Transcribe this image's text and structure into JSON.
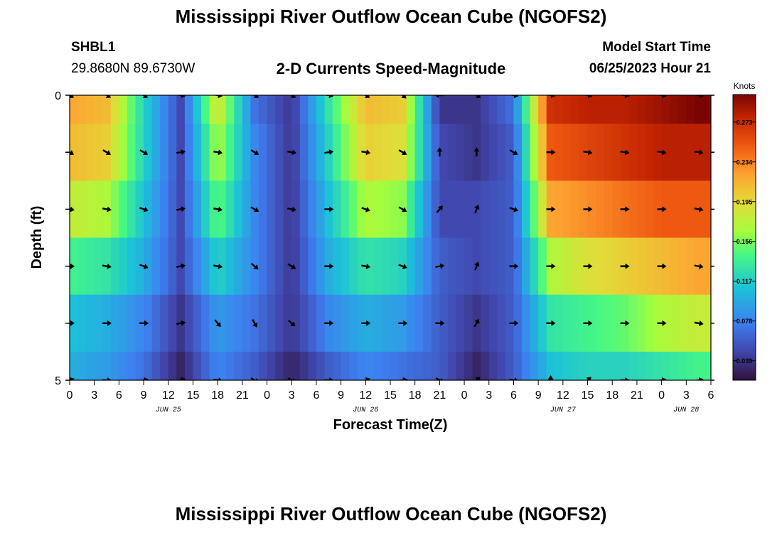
{
  "header": {
    "title": "Mississippi River Outflow Ocean Cube (NGOFS2)",
    "station_name": "SHBL1",
    "coordinates": "29.8680N  89.6730W",
    "subtitle": "2-D Currents Speed-Magnitude",
    "model_start_label": "Model Start Time",
    "model_start_value": "06/25/2023 Hour 21"
  },
  "footer": {
    "title": "Mississippi River Outflow Ocean Cube (NGOFS2)"
  },
  "chart_data": {
    "type": "heatmap",
    "xlabel": "Forecast Time(Z)",
    "ylabel": "Depth (ft)",
    "x_ticks": [
      "0",
      "3",
      "6",
      "9",
      "12",
      "15",
      "18",
      "21",
      "0",
      "3",
      "6",
      "9",
      "12",
      "15",
      "18",
      "21",
      "0",
      "3",
      "6",
      "9",
      "12",
      "15",
      "18",
      "21",
      "0",
      "3",
      "6"
    ],
    "x_range_hours": [
      0,
      78
    ],
    "y_ticks": [
      "0",
      "5"
    ],
    "y_range": [
      0,
      5
    ],
    "depth_levels": [
      0,
      1,
      2,
      3,
      4,
      5
    ],
    "date_labels": [
      {
        "label": "JUN 25",
        "hour": 12
      },
      {
        "label": "JUN 26",
        "hour": 36
      },
      {
        "label": "JUN 27",
        "hour": 60
      },
      {
        "label": "JUN 28",
        "hour": 75
      }
    ],
    "colorbar": {
      "units": "Knots",
      "ticks": [
        "0.273",
        "0.234",
        "0.195",
        "0.156",
        "0.117",
        "0.078",
        "0.039"
      ],
      "tick_values": [
        0.273,
        0.234,
        0.195,
        0.156,
        0.117,
        0.078,
        0.039
      ],
      "min": 0.02,
      "max": 0.3
    },
    "time_hours": [
      0,
      4.5,
      9,
      13.5,
      18,
      22.5,
      27,
      31.5,
      36,
      40.5,
      45,
      49.5,
      54,
      58.5,
      63,
      67.5,
      72,
      76.5
    ],
    "speed_knots": [
      [
        0.22,
        0.21,
        0.12,
        0.05,
        0.19,
        0.07,
        0.04,
        0.13,
        0.21,
        0.2,
        0.04,
        0.04,
        0.07,
        0.27,
        0.28,
        0.28,
        0.29,
        0.3
      ],
      [
        0.21,
        0.2,
        0.12,
        0.05,
        0.17,
        0.08,
        0.04,
        0.12,
        0.2,
        0.19,
        0.05,
        0.04,
        0.06,
        0.25,
        0.26,
        0.27,
        0.28,
        0.28
      ],
      [
        0.18,
        0.17,
        0.11,
        0.05,
        0.15,
        0.08,
        0.04,
        0.11,
        0.17,
        0.16,
        0.05,
        0.05,
        0.06,
        0.22,
        0.23,
        0.24,
        0.25,
        0.25
      ],
      [
        0.14,
        0.13,
        0.1,
        0.05,
        0.12,
        0.08,
        0.04,
        0.1,
        0.13,
        0.12,
        0.06,
        0.05,
        0.06,
        0.17,
        0.19,
        0.2,
        0.21,
        0.22
      ],
      [
        0.11,
        0.1,
        0.08,
        0.04,
        0.09,
        0.07,
        0.04,
        0.08,
        0.1,
        0.09,
        0.06,
        0.04,
        0.06,
        0.13,
        0.14,
        0.15,
        0.17,
        0.18
      ],
      [
        0.1,
        0.09,
        0.07,
        0.03,
        0.08,
        0.06,
        0.03,
        0.06,
        0.08,
        0.07,
        0.06,
        0.03,
        0.06,
        0.11,
        0.12,
        0.12,
        0.13,
        0.14
      ]
    ],
    "direction_deg": [
      [
        120,
        120,
        120,
        100,
        100,
        120,
        120,
        100,
        120,
        130,
        270,
        120,
        100,
        100,
        100,
        100,
        100,
        100
      ],
      [
        120,
        120,
        120,
        80,
        100,
        120,
        100,
        80,
        100,
        120,
        0,
        0,
        120,
        90,
        100,
        100,
        100,
        100
      ],
      [
        100,
        100,
        110,
        80,
        100,
        120,
        100,
        90,
        110,
        120,
        40,
        20,
        110,
        90,
        90,
        90,
        90,
        100
      ],
      [
        90,
        100,
        110,
        80,
        100,
        130,
        120,
        90,
        100,
        110,
        80,
        20,
        90,
        90,
        90,
        90,
        90,
        100
      ],
      [
        90,
        90,
        90,
        80,
        140,
        150,
        130,
        90,
        90,
        90,
        90,
        30,
        90,
        90,
        90,
        90,
        90,
        100
      ],
      [
        70,
        90,
        80,
        70,
        100,
        120,
        120,
        90,
        70,
        80,
        120,
        50,
        100,
        0,
        50,
        90,
        80,
        80
      ]
    ]
  }
}
